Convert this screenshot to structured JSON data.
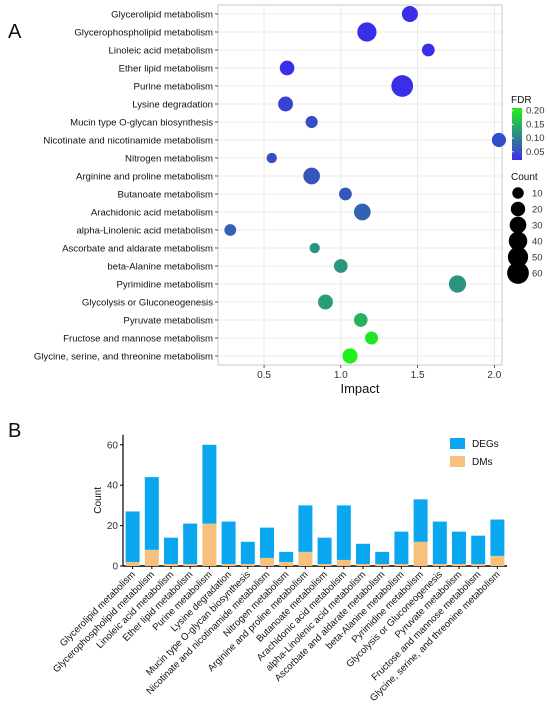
{
  "panel_a_label": "A",
  "panel_b_label": "B",
  "colors": {
    "fdr_low": "#3b2ee8",
    "fdr_high": "#1ef01e",
    "degs": "#0aa6f0",
    "dms": "#f6c07f",
    "grid": "#e5e5e5"
  },
  "chart_data": [
    {
      "type": "scatter",
      "xlabel": "Impact",
      "xlim": [
        0.2,
        2.05
      ],
      "xticks": [
        "0.5",
        "1.0",
        "1.5",
        "2.0"
      ],
      "xtick_values": [
        0.5,
        1.0,
        1.5,
        2.0
      ],
      "grid": true,
      "categories": [
        "Glycerolipid metabolism",
        "Glycerophospholipid metabolism",
        "Linoleic acid metabolism",
        "Ether lipid metabolism",
        "Purine metabolism",
        "Lysine degradation",
        "Mucin type O-glycan biosynthesis",
        "Nicotinate and nicotinamide metabolism",
        "Nitrogen metabolism",
        "Arginine and proline metabolism",
        "Butanoate metabolism",
        "Arachidonic acid metabolism",
        "alpha-Linolenic acid metabolism",
        "Ascorbate and aldarate metabolism",
        "beta-Alanine metabolism",
        "Pyrimidine metabolism",
        "Glycolysis or Gluconeogenesis",
        "Pyruvate metabolism",
        "Fructose and mannose metabolism",
        "Glycine, serine, and threonine metabolism"
      ],
      "impact": [
        1.45,
        1.17,
        1.57,
        0.65,
        1.4,
        0.64,
        0.81,
        2.03,
        0.55,
        0.81,
        1.03,
        1.14,
        0.28,
        0.83,
        1.0,
        1.76,
        0.9,
        1.13,
        1.2,
        1.06
      ],
      "count": [
        27,
        44,
        14,
        21,
        60,
        22,
        12,
        19,
        7,
        30,
        14,
        30,
        11,
        7,
        17,
        33,
        22,
        17,
        15,
        23
      ],
      "fdr": [
        0.02,
        0.02,
        0.02,
        0.02,
        0.02,
        0.04,
        0.05,
        0.05,
        0.05,
        0.06,
        0.06,
        0.07,
        0.07,
        0.12,
        0.12,
        0.12,
        0.13,
        0.15,
        0.2,
        0.21
      ],
      "legend": {
        "color_title": "FDR",
        "color_ticks": [
          "0.20",
          "0.15",
          "0.10",
          "0.05"
        ],
        "color_tick_values": [
          0.2,
          0.15,
          0.1,
          0.05
        ],
        "color_range": [
          0.02,
          0.21
        ],
        "size_title": "Count",
        "size_ticks": [
          "10",
          "20",
          "30",
          "40",
          "50",
          "60"
        ],
        "size_tick_values": [
          10,
          20,
          30,
          40,
          50,
          60
        ]
      }
    },
    {
      "type": "bar",
      "stacked": true,
      "ylabel": "Count",
      "ylim": [
        0,
        65
      ],
      "yticks": [
        "0",
        "20",
        "40",
        "60"
      ],
      "ytick_values": [
        0,
        20,
        40,
        60
      ],
      "legend_position": "top-right",
      "categories": [
        "Glycerolipid metabolism",
        "Glycerophospholipid metabolism",
        "Linoleic acid metabolism",
        "Ether lipid metabolism",
        "Purine metabolism",
        "Lysine degradation",
        "Mucin type O-glycan biosynthesis",
        "Nicotinate and nicotinamide metabolism",
        "Nitrogen metabolism",
        "Arginine and proline metabolism",
        "Butanoate metabolism",
        "Arachidonic acid metabolism",
        "alpha-Linolenic acid metabolism",
        "Ascorbate and aldarate metabolism",
        "beta-Alanine metabolism",
        "Pyrimidine metabolism",
        "Glycolysis or Gluconeogenesis",
        "Pyruvate metabolism",
        "Fructose and mannose metabolism",
        "Glycine, serine, and threonine metabolism"
      ],
      "series": [
        {
          "name": "DEGs",
          "values": [
            25,
            36,
            13,
            20,
            39,
            21,
            11,
            15,
            5,
            23,
            13,
            27,
            10,
            6,
            16,
            21,
            21,
            16,
            14,
            18
          ]
        },
        {
          "name": "DMs",
          "values": [
            2,
            8,
            1,
            1,
            21,
            1,
            1,
            4,
            2,
            7,
            1,
            3,
            1,
            1,
            1,
            12,
            1,
            1,
            1,
            5
          ]
        }
      ]
    }
  ]
}
